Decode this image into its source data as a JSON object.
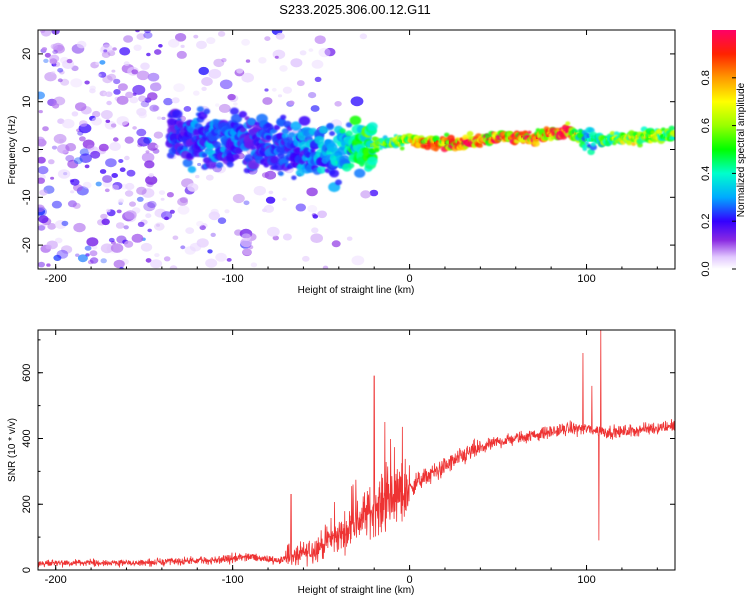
{
  "figure_title": "S233.2025.306.00.12.G11",
  "chart_data": [
    {
      "type": "heatmap",
      "name": "spectrogram",
      "xlabel": "Height of straight line (km)",
      "ylabel": "Frequency (Hz)",
      "xlim": [
        -210,
        150
      ],
      "ylim": [
        -25,
        25
      ],
      "xticks": [
        -200,
        -100,
        0,
        100
      ],
      "yticks": [
        -20,
        -10,
        0,
        10,
        20
      ],
      "colorbar": {
        "label": "Normalized spectral amplitude",
        "range": [
          0,
          1
        ],
        "ticks": [
          0.0,
          0.2,
          0.4,
          0.6,
          0.8
        ],
        "tick_labels": [
          "0.0",
          "0.2",
          "0.4",
          "0.6",
          "0.8"
        ]
      },
      "ridge": {
        "x": [
          -130,
          -110,
          -90,
          -75,
          -60,
          -45,
          -30,
          -20,
          -10,
          0,
          10,
          30,
          50,
          70,
          85,
          90,
          95,
          100,
          110,
          120,
          150
        ],
        "y": [
          2.5,
          2.0,
          1.5,
          1.0,
          0.5,
          -1.0,
          0.5,
          1.0,
          1.5,
          2.0,
          1.5,
          1.5,
          2.5,
          2.5,
          3.5,
          4.0,
          3.0,
          2.0,
          2.0,
          2.5,
          3.0
        ],
        "amplitude": [
          0.25,
          0.3,
          0.25,
          0.25,
          0.3,
          0.35,
          0.45,
          0.55,
          0.6,
          0.7,
          0.85,
          0.9,
          0.9,
          0.9,
          0.9,
          0.95,
          0.6,
          0.35,
          0.55,
          0.7,
          0.6
        ]
      }
    },
    {
      "type": "line",
      "name": "snr",
      "xlabel": "Height of straight line (km)",
      "ylabel": "SNR (10 * v/v)",
      "xlim": [
        -210,
        150
      ],
      "ylim": [
        0,
        730
      ],
      "xticks": [
        -200,
        -100,
        0,
        100
      ],
      "yticks": [
        0,
        200,
        400,
        600
      ],
      "color": "#ee3333",
      "trend": {
        "x": [
          -210,
          -150,
          -110,
          -90,
          -75,
          -65,
          -55,
          -45,
          -35,
          -25,
          -15,
          -5,
          5,
          15,
          25,
          35,
          50,
          70,
          90,
          100,
          110,
          120,
          150
        ],
        "y": [
          20,
          22,
          30,
          40,
          30,
          40,
          60,
          90,
          120,
          170,
          200,
          230,
          270,
          300,
          330,
          360,
          390,
          410,
          430,
          430,
          420,
          420,
          440
        ]
      },
      "spikes": [
        {
          "x": -67,
          "y": 230
        },
        {
          "x": -32,
          "y": 260
        },
        {
          "x": -20,
          "y": 590
        },
        {
          "x": -14,
          "y": 450
        },
        {
          "x": 98,
          "y": 660
        },
        {
          "x": 103,
          "y": 560
        },
        {
          "x": 108,
          "y": 730
        },
        {
          "x": 107,
          "y": 90
        }
      ]
    }
  ]
}
